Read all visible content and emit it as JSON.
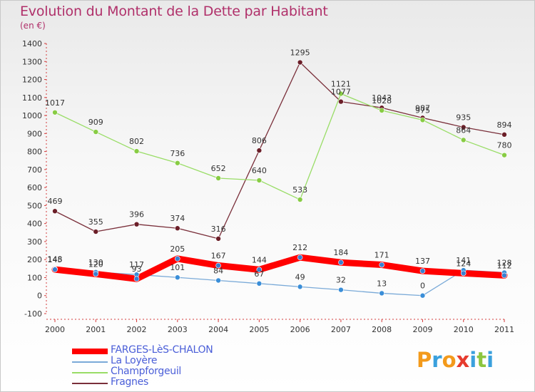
{
  "title": "Evolution du Montant de la Dette par Habitant",
  "subtitle": "(en €)",
  "brand": {
    "text": "Proxiti",
    "letter_colors": [
      "#f39a1b",
      "#3aa0dd",
      "#f39a1b",
      "#e63b2e",
      "#3aa0dd",
      "#8dc63f",
      "#3aa0dd"
    ]
  },
  "chart_data": {
    "type": "line",
    "title": "Evolution du Montant de la Dette par Habitant",
    "ylabel": "(en €)",
    "xlabel": "",
    "x": [
      "2000",
      "2001",
      "2002",
      "2003",
      "2004",
      "2005",
      "2006",
      "2007",
      "2008",
      "2009",
      "2010",
      "2011"
    ],
    "ylim": [
      -100,
      1400
    ],
    "yticks": [
      -100,
      0,
      100,
      200,
      300,
      400,
      500,
      600,
      700,
      800,
      900,
      1000,
      1100,
      1200,
      1300,
      1400
    ],
    "grid": false,
    "legend_position": "bottom-left",
    "series": [
      {
        "name": "FARGES-LèS-CHALON",
        "color": "#ff0000",
        "marker": "#3a7fd0",
        "thick": true,
        "values": [
          145,
          120,
          93,
          205,
          167,
          144,
          212,
          184,
          171,
          137,
          124,
          112
        ],
        "labels": [
          "145",
          "120",
          "93",
          "205",
          "167",
          "144",
          "212",
          "184",
          "171",
          "137",
          "124",
          "112"
        ]
      },
      {
        "name": "La Loyère",
        "color": "#7aaad8",
        "marker": "#3a8ed8",
        "thick": false,
        "values": [
          148,
          130,
          117,
          101,
          84,
          67,
          49,
          32,
          13,
          0,
          141,
          128
        ],
        "labels": [
          "148",
          "130",
          "117",
          "101",
          "84",
          "67",
          "49",
          "32",
          "13",
          "0",
          "141",
          "128"
        ]
      },
      {
        "name": "Champforgeuil",
        "color": "#99dd66",
        "marker": "#88cc44",
        "thick": false,
        "values": [
          1017,
          909,
          802,
          736,
          652,
          640,
          533,
          1121,
          1028,
          975,
          864,
          780
        ],
        "labels": [
          "1017",
          "909",
          "802",
          "736",
          "652",
          "640",
          "533",
          "1121",
          "1028",
          "975",
          "864",
          "780"
        ]
      },
      {
        "name": "Fragnes",
        "color": "#7a2f3a",
        "marker": "#6b1e28",
        "thick": false,
        "values": [
          469,
          355,
          396,
          374,
          316,
          806,
          1295,
          1077,
          1043,
          987,
          935,
          894
        ],
        "labels": [
          "469",
          "355",
          "396",
          "374",
          "316",
          "806",
          "1295",
          "1077",
          "1043",
          "987",
          "935",
          "894"
        ]
      }
    ]
  }
}
